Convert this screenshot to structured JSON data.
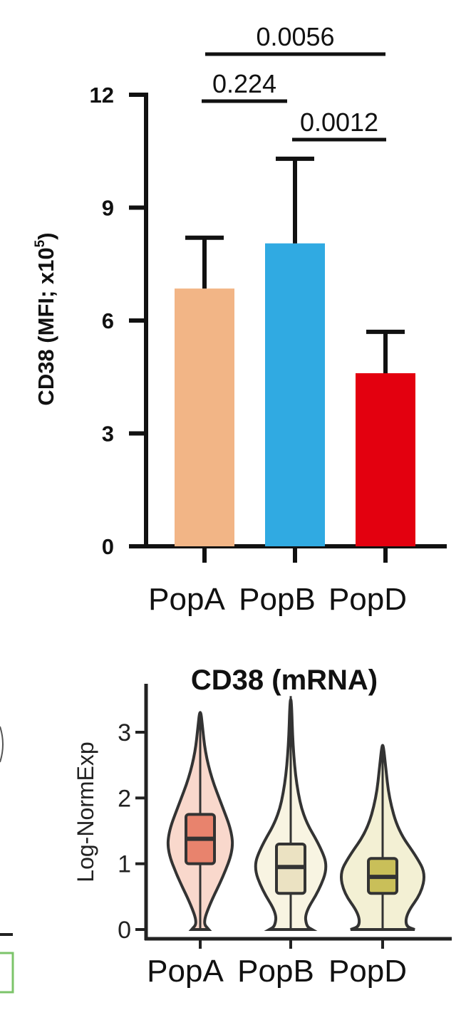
{
  "chart_data": [
    {
      "type": "bar",
      "ylabel": "CD38 (MFI; x10",
      "ylabel_sup": "5",
      "ylabel_close": ")",
      "categories": [
        "PopA",
        "PopB",
        "PopD"
      ],
      "values": [
        6.85,
        8.05,
        4.6
      ],
      "errors": [
        1.35,
        2.25,
        1.1
      ],
      "colors": [
        "#f2b586",
        "#30aae2",
        "#e3000f"
      ],
      "ylim": [
        0,
        12
      ],
      "yticks": [
        "0",
        "3",
        "6",
        "9",
        "12"
      ],
      "comparisons": [
        {
          "from": "PopA",
          "to": "PopD",
          "label": "0.0056"
        },
        {
          "from": "PopA",
          "to": "PopB",
          "label": "0.224"
        },
        {
          "from": "PopB",
          "to": "PopD",
          "label": "0.0012"
        }
      ]
    },
    {
      "type": "violin",
      "title": "CD38 (mRNA)",
      "ylabel": "Log-NormExp",
      "categories": [
        "PopA",
        "PopB",
        "PopD"
      ],
      "ylim": [
        0,
        3.5
      ],
      "yticks": [
        "0",
        "1",
        "2",
        "3"
      ],
      "medians": [
        1.38,
        0.95,
        0.8
      ],
      "q1": [
        1.0,
        0.55,
        0.55
      ],
      "q3": [
        1.75,
        1.3,
        1.08
      ],
      "max": [
        3.3,
        3.55,
        2.8
      ],
      "violin_colors": [
        "#f9d8cc",
        "#f8f4e2",
        "#f3f0d4"
      ],
      "box_colors": [
        "#e8836d",
        "#ebe2c2",
        "#c9bf59"
      ]
    }
  ]
}
